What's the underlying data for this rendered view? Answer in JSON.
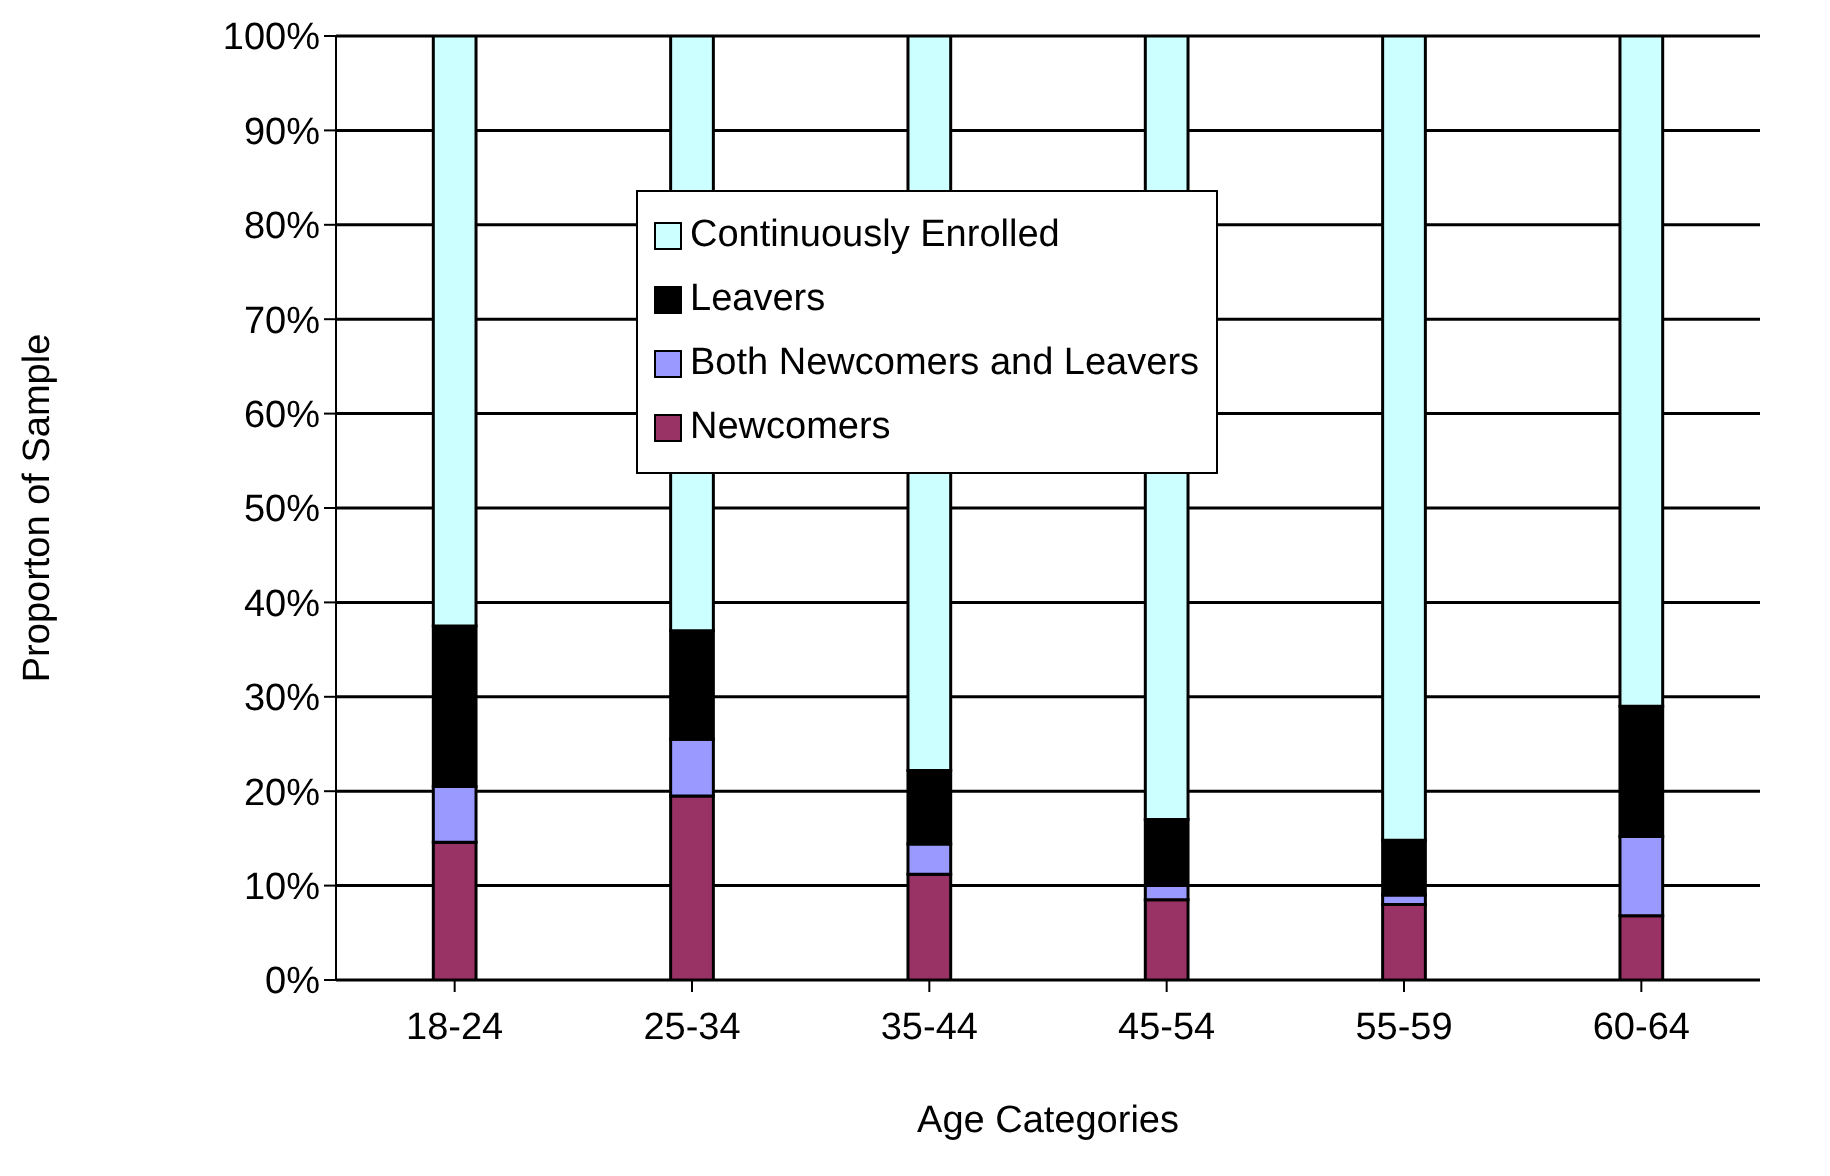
{
  "chart_data": {
    "type": "bar",
    "stacked": true,
    "xlabel": "Age Categories",
    "ylabel": "Proporton of Sample",
    "categories": [
      "18-24",
      "25-34",
      "35-44",
      "45-54",
      "55-59",
      "60-64"
    ],
    "series": [
      {
        "name": "Newcomers",
        "color": "#993366",
        "values": [
          14.6,
          19.5,
          11.2,
          8.5,
          8,
          6.8
        ]
      },
      {
        "name": "Both Newcomers and Leavers",
        "color": "#9999ff",
        "values": [
          5.9,
          6,
          3.2,
          1.5,
          1,
          8.4
        ]
      },
      {
        "name": "Leavers",
        "color": "#000000",
        "values": [
          17,
          11.5,
          7.8,
          7,
          5.8,
          13.8
        ]
      },
      {
        "name": "Continuously Enrolled",
        "color": "#ccffff",
        "values": [
          62.5,
          63,
          77.8,
          83,
          85.2,
          71
        ]
      }
    ],
    "ylim": [
      0,
      100
    ],
    "yticks": [
      {
        "value": 0,
        "label": "0%"
      },
      {
        "value": 10,
        "label": "10%"
      },
      {
        "value": 20,
        "label": "20%"
      },
      {
        "value": 30,
        "label": "30%"
      },
      {
        "value": 40,
        "label": "40%"
      },
      {
        "value": 50,
        "label": "50%"
      },
      {
        "value": 60,
        "label": "60%"
      },
      {
        "value": 70,
        "label": "70%"
      },
      {
        "value": 80,
        "label": "80%"
      },
      {
        "value": 90,
        "label": "90%"
      },
      {
        "value": 100,
        "label": "100%"
      }
    ],
    "grid": "y",
    "legend": "top"
  }
}
